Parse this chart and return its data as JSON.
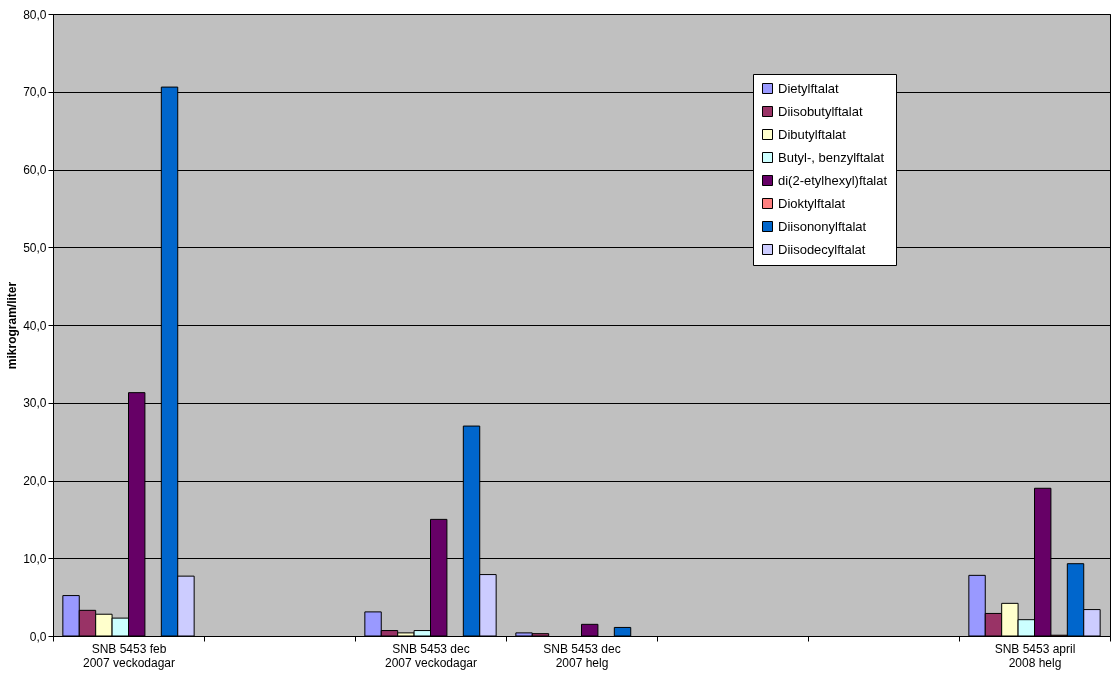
{
  "chart_data": {
    "type": "bar",
    "ylabel": "mikrogram/liter",
    "categories": [
      "SNB 5453 feb 2007 veckodagar",
      null,
      "SNB 5453 dec 2007 veckodagar",
      "SNB 5453 dec 2007 helg",
      null,
      null,
      "SNB 5453 april 2008 helg"
    ],
    "series": [
      {
        "name": "Dietylftalat",
        "color": "#9999ff",
        "values": [
          5.2,
          null,
          3.1,
          0.4,
          null,
          null,
          7.8
        ]
      },
      {
        "name": "Diisobutylftalat",
        "color": "#993366",
        "values": [
          3.3,
          null,
          0.7,
          0.3,
          null,
          null,
          2.9
        ]
      },
      {
        "name": "Dibutylftalat",
        "color": "#ffffcc",
        "values": [
          2.8,
          null,
          0.4,
          null,
          null,
          null,
          4.2
        ]
      },
      {
        "name": "Butyl-, benzylftalat",
        "color": "#ccffff",
        "values": [
          2.3,
          null,
          0.7,
          null,
          null,
          null,
          2.1
        ]
      },
      {
        "name": "di(2-etylhexyl)ftalat",
        "color": "#660066",
        "values": [
          31.3,
          null,
          15.0,
          1.5,
          null,
          null,
          19.0
        ]
      },
      {
        "name": "Dioktylftalat",
        "color": "#ff8080",
        "values": [
          null,
          null,
          null,
          null,
          null,
          null,
          0.1
        ]
      },
      {
        "name": "Diisononylftalat",
        "color": "#0066cc",
        "values": [
          70.6,
          null,
          27.0,
          1.1,
          null,
          null,
          9.3
        ]
      },
      {
        "name": "Diisodecylftalat",
        "color": "#ccccff",
        "values": [
          7.7,
          null,
          7.9,
          null,
          null,
          null,
          3.4
        ]
      }
    ],
    "ylim": [
      0,
      80
    ],
    "yticks": [
      {
        "value": 0,
        "label": "0,0"
      },
      {
        "value": 10,
        "label": "10,0"
      },
      {
        "value": 20,
        "label": "20,0"
      },
      {
        "value": 30,
        "label": "30,0"
      },
      {
        "value": 40,
        "label": "40,0"
      },
      {
        "value": 50,
        "label": "50,0"
      },
      {
        "value": 60,
        "label": "60,0"
      },
      {
        "value": 70,
        "label": "70,0"
      },
      {
        "value": 80,
        "label": "80,0"
      }
    ],
    "grid": "y",
    "legend": "top right"
  }
}
